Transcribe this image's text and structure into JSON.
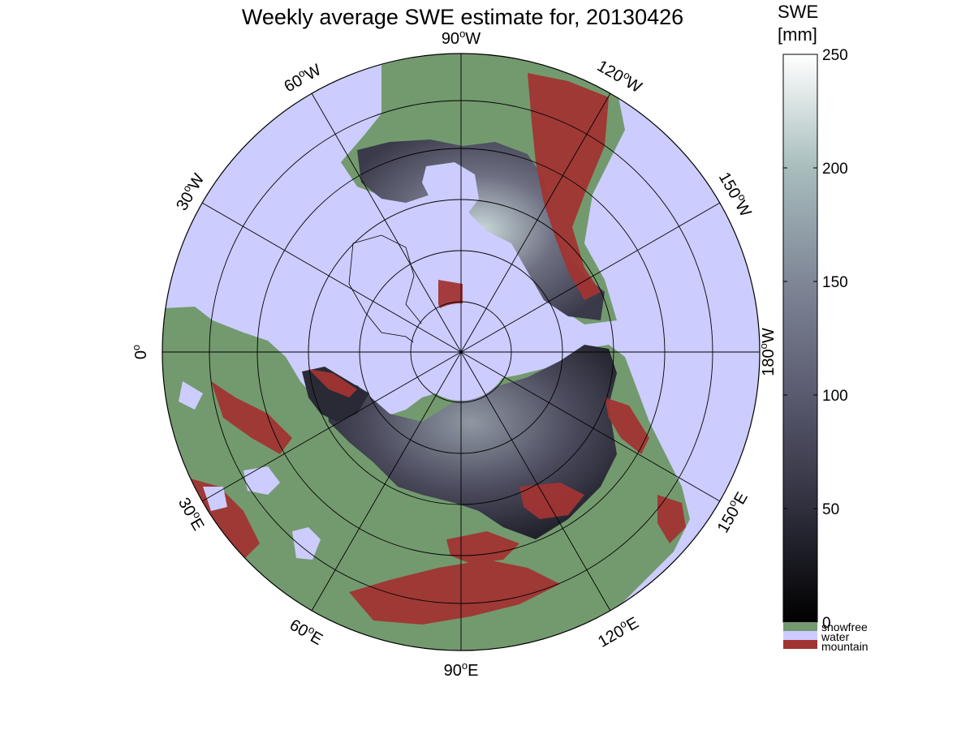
{
  "title": "Weekly average SWE estimate for, 20130426",
  "colorbar": {
    "title_line1": "SWE",
    "title_line2": "[mm]",
    "ticks": [
      {
        "value": 250,
        "label": "250"
      },
      {
        "value": 200,
        "label": "200"
      },
      {
        "value": 150,
        "label": "150"
      },
      {
        "value": 100,
        "label": "100"
      },
      {
        "value": 50,
        "label": "50"
      },
      {
        "value": 0,
        "label": "0"
      }
    ],
    "range": [
      0,
      250
    ],
    "gradient_colors": [
      "#000000",
      "#2f2f3d",
      "#5a5a70",
      "#7f8797",
      "#a8bdbd",
      "#ffffff"
    ],
    "categories": [
      {
        "label": "snowfree",
        "color": "#739a6e"
      },
      {
        "label": "water",
        "color": "#ccccff"
      },
      {
        "label": "mountain",
        "color": "#a13433"
      }
    ]
  },
  "map": {
    "projection": "north polar stereographic",
    "ocean_color": "#ccccff",
    "land_color": "#739a6e",
    "mountain_color": "#a13433",
    "snow_colors": [
      "#14141c",
      "#3a3a4a",
      "#64647a",
      "#8f98a3",
      "#c8d8d8"
    ],
    "longitude_labels": [
      {
        "deg": "90",
        "dir": "W"
      },
      {
        "deg": "120",
        "dir": "W"
      },
      {
        "deg": "150",
        "dir": "W"
      },
      {
        "deg": "180",
        "dir": "W"
      },
      {
        "deg": "150",
        "dir": "E"
      },
      {
        "deg": "120",
        "dir": "E"
      },
      {
        "deg": "90",
        "dir": "E"
      },
      {
        "deg": "60",
        "dir": "E"
      },
      {
        "deg": "30",
        "dir": "E"
      },
      {
        "deg": "0",
        "dir": ""
      },
      {
        "deg": "30",
        "dir": "W"
      },
      {
        "deg": "60",
        "dir": "W"
      }
    ],
    "degree_symbol": "o"
  }
}
